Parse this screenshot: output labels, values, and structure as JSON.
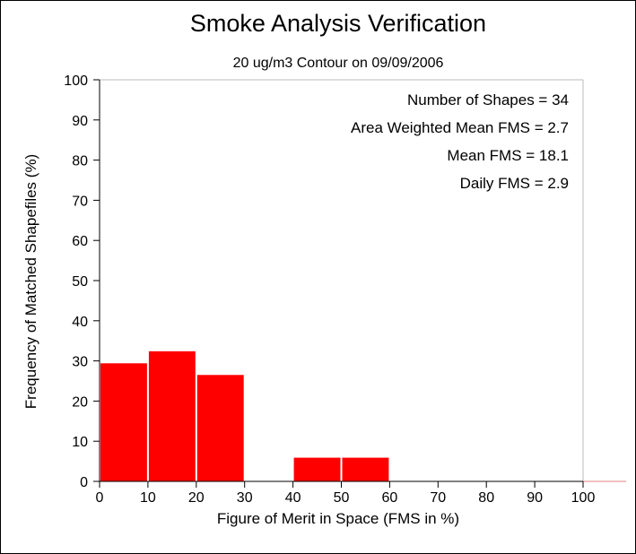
{
  "chart_data": {
    "type": "bar",
    "title": "Smoke Analysis Verification",
    "subtitle": "20 ug/m3 Contour on 09/09/2006",
    "xlabel": "Figure of Merit in Space (FMS in %)",
    "ylabel": "Frequency of Matched Shapefiles (%)",
    "xlim": [
      0,
      100
    ],
    "ylim": [
      0,
      100
    ],
    "xticks": [
      "0",
      "10",
      "20",
      "30",
      "40",
      "50",
      "60",
      "70",
      "80",
      "90",
      "100"
    ],
    "yticks": [
      "0",
      "10",
      "20",
      "30",
      "40",
      "50",
      "60",
      "70",
      "80",
      "90",
      "100"
    ],
    "bin_width": 10,
    "bins": [
      0,
      10,
      20,
      30,
      40,
      50,
      60,
      70,
      80,
      90
    ],
    "values": [
      29.4,
      32.4,
      26.5,
      0,
      5.9,
      5.9,
      0,
      0,
      0,
      0
    ],
    "bar_color": "#ff0000",
    "grid": false,
    "annotations": [
      "Number of Shapes = 34",
      "Area Weighted Mean FMS = 2.7",
      "Mean FMS = 18.1",
      "Daily FMS = 2.9"
    ]
  }
}
